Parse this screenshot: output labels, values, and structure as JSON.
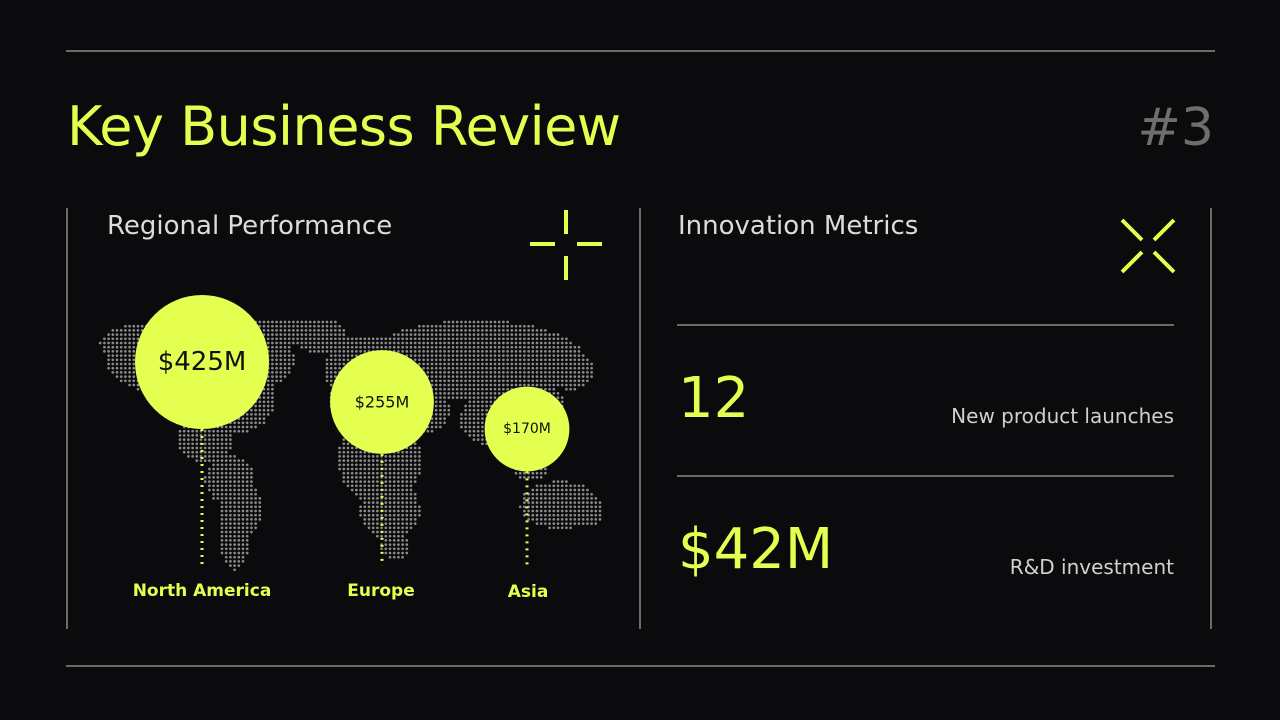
{
  "header": {
    "title": "Key Business Review",
    "page_number": "#3"
  },
  "regional": {
    "section_title": "Regional Performance",
    "regions": [
      {
        "name": "North America",
        "value_label": "$425M",
        "value": 425
      },
      {
        "name": "Europe",
        "value_label": "$255M",
        "value": 255
      },
      {
        "name": "Asia",
        "value_label": "$170M",
        "value": 170
      }
    ]
  },
  "innovation": {
    "section_title": "Innovation Metrics",
    "metrics": [
      {
        "value": "12",
        "label": "New product launches"
      },
      {
        "value": "$42M",
        "label": "R&D investment"
      }
    ]
  },
  "colors": {
    "accent": "#e4ff4f",
    "background": "#0b0a0c",
    "rule": "#6b6b6b",
    "map_dots": "#8a8a8a"
  },
  "icons": [
    "crosshair-icon",
    "x-mark-icon"
  ]
}
